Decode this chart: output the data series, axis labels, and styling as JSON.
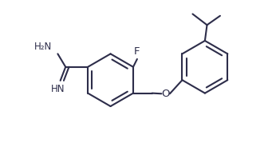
{
  "bg_color": "#ffffff",
  "line_color": "#2d2d4a",
  "line_width": 1.5,
  "font_size": 8.5,
  "fig_width": 3.46,
  "fig_height": 1.84,
  "dpi": 100,
  "xlim": [
    0.0,
    10.5
  ],
  "ylim": [
    0.5,
    6.0
  ]
}
